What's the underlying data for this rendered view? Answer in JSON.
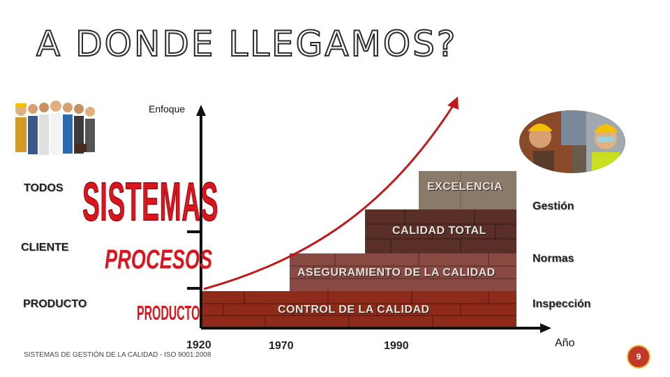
{
  "title": "A DONDE LLEGAMOS?",
  "axis": {
    "y_label": "Enfoque",
    "x_label": "Año"
  },
  "levels": {
    "todos": "TODOS",
    "cliente": "CLIENTE",
    "producto": "PRODUCTO"
  },
  "focus_words": {
    "sistemas": "SISTEMAS",
    "procesos": "PROCESOS",
    "producto": "PRODUCTO"
  },
  "steps": {
    "control": "CONTROL DE LA CALIDAD",
    "aseguramiento": "ASEGURAMIENTO DE LA CALIDAD",
    "calidad_total": "CALIDAD TOTAL",
    "excelencia": "EXCELENCIA"
  },
  "right_labels": {
    "gestion": "Gestión",
    "normas": "Normas",
    "inspeccion": "Inspección"
  },
  "years": [
    "1920",
    "1970",
    "1990"
  ],
  "footer": "SISTEMAS DE GESTIÓN DE LA CALIDAD - ISO 9001:2008",
  "page_number": "9",
  "colors": {
    "control": "#8e2a1a",
    "aseguramiento": "#8a4a44",
    "calidad_total": "#5a2f28",
    "excelencia": "#8a7a6a",
    "curve": "#c01a1a",
    "accent": "#d9151f"
  }
}
